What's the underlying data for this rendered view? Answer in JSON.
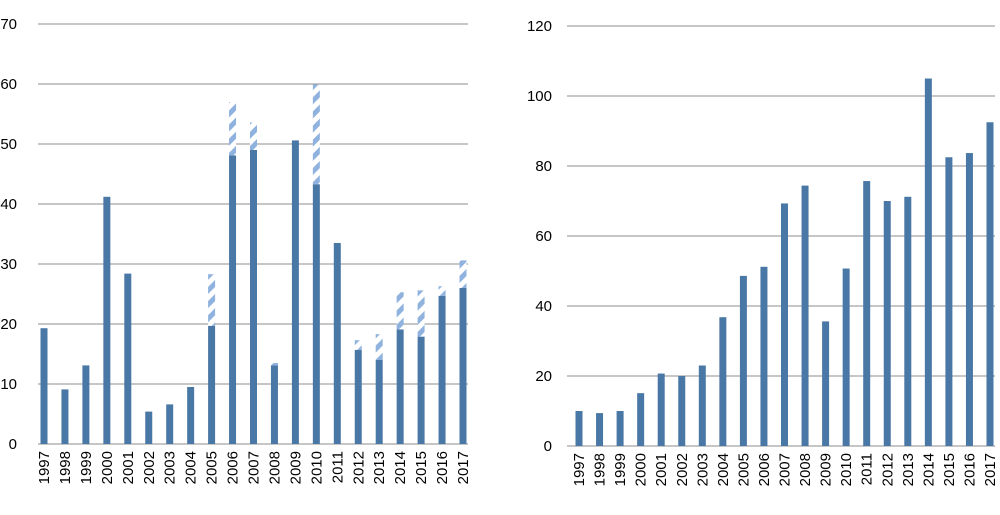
{
  "chart_data": [
    {
      "type": "bar",
      "stacked": true,
      "categories": [
        "1997",
        "1998",
        "1999",
        "2000",
        "2001",
        "2002",
        "2003",
        "2004",
        "2005",
        "2006",
        "2007",
        "2008",
        "2009",
        "2010",
        "2011",
        "2012",
        "2013",
        "2014",
        "2015",
        "2016",
        "2017"
      ],
      "series": [
        {
          "values": [
            19.3,
            9.1,
            13.1,
            41.2,
            28.4,
            5.4,
            6.6,
            9.5,
            19.7,
            48.1,
            49.0,
            13.1,
            50.6,
            43.3,
            33.5,
            15.7,
            14.0,
            19.1,
            17.9,
            24.7,
            26.0
          ],
          "color": "#4a78a6",
          "pattern": "solid"
        },
        {
          "values": [
            0,
            0,
            0,
            0,
            0,
            0,
            0,
            0,
            8.6,
            8.9,
            4.6,
            0.4,
            0,
            16.6,
            0,
            1.6,
            4.3,
            6.2,
            7.7,
            1.6,
            4.6
          ],
          "color": "#8fb3de",
          "pattern": "diagonal-hatch"
        }
      ],
      "ylim": [
        0,
        70
      ],
      "yticks": [
        0,
        10,
        20,
        30,
        40,
        50,
        60,
        70
      ],
      "grid": true,
      "title": "",
      "xlabel": "",
      "ylabel": ""
    },
    {
      "type": "bar",
      "categories": [
        "1997",
        "1998",
        "1999",
        "2000",
        "2001",
        "2002",
        "2003",
        "2004",
        "2005",
        "2006",
        "2007",
        "2008",
        "2009",
        "2010",
        "2011",
        "2012",
        "2013",
        "2014",
        "2015",
        "2016",
        "2017"
      ],
      "series": [
        {
          "values": [
            10.0,
            9.4,
            10.0,
            15.1,
            20.7,
            20.0,
            23.0,
            36.8,
            48.6,
            51.2,
            69.3,
            74.4,
            35.6,
            50.7,
            75.7,
            70.0,
            71.2,
            105.0,
            82.5,
            83.7,
            92.5
          ],
          "color": "#4a78a6",
          "pattern": "solid"
        }
      ],
      "ylim": [
        0,
        120
      ],
      "yticks": [
        0,
        20,
        40,
        60,
        80,
        100,
        120
      ],
      "grid": true,
      "title": "",
      "xlabel": "",
      "ylabel": ""
    }
  ]
}
